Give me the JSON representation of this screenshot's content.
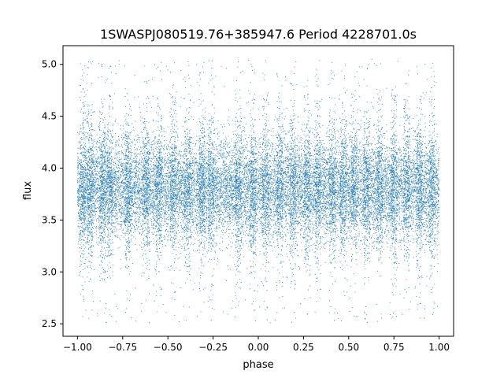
{
  "chart_data": {
    "type": "scatter",
    "title": "1SWASPJ080519.76+385947.6 Period 4228701.0s",
    "xlabel": "phase",
    "ylabel": "flux",
    "xlim": [
      -1.08,
      1.08
    ],
    "ylim": [
      2.38,
      5.18
    ],
    "x_ticks": [
      -1.0,
      -0.75,
      -0.5,
      -0.25,
      0.0,
      0.25,
      0.5,
      0.75,
      1.0
    ],
    "x_tick_labels": [
      "−1.00",
      "−0.75",
      "−0.50",
      "−0.25",
      "0.00",
      "0.25",
      "0.50",
      "0.75",
      "1.00"
    ],
    "y_ticks": [
      2.5,
      3.0,
      3.5,
      4.0,
      4.5,
      5.0
    ],
    "y_tick_labels": [
      "2.5",
      "3.0",
      "3.5",
      "4.0",
      "4.5",
      "5.0"
    ],
    "grid": false,
    "legend": "none",
    "series": [
      {
        "color": "#1f77b4",
        "marker": "point",
        "phase_range": [
          -1.0,
          1.0
        ],
        "flux_core_range": [
          3.2,
          4.3
        ],
        "flux_median": 3.8,
        "flux_outlier_range": [
          2.5,
          5.05
        ],
        "dense_bands_phase": [
          -0.97,
          -0.93,
          -0.86,
          -0.82,
          -0.72,
          -0.62,
          -0.55,
          -0.47,
          -0.39,
          -0.31,
          -0.26,
          -0.11,
          -0.03,
          0.04,
          0.12,
          0.19,
          0.27,
          0.33,
          0.41,
          0.47,
          0.53,
          0.6,
          0.67,
          0.75,
          0.82,
          0.89,
          0.96
        ]
      }
    ]
  },
  "style": {
    "point_color": "#1f77b4",
    "axis_color": "#000000",
    "background": "#ffffff"
  }
}
